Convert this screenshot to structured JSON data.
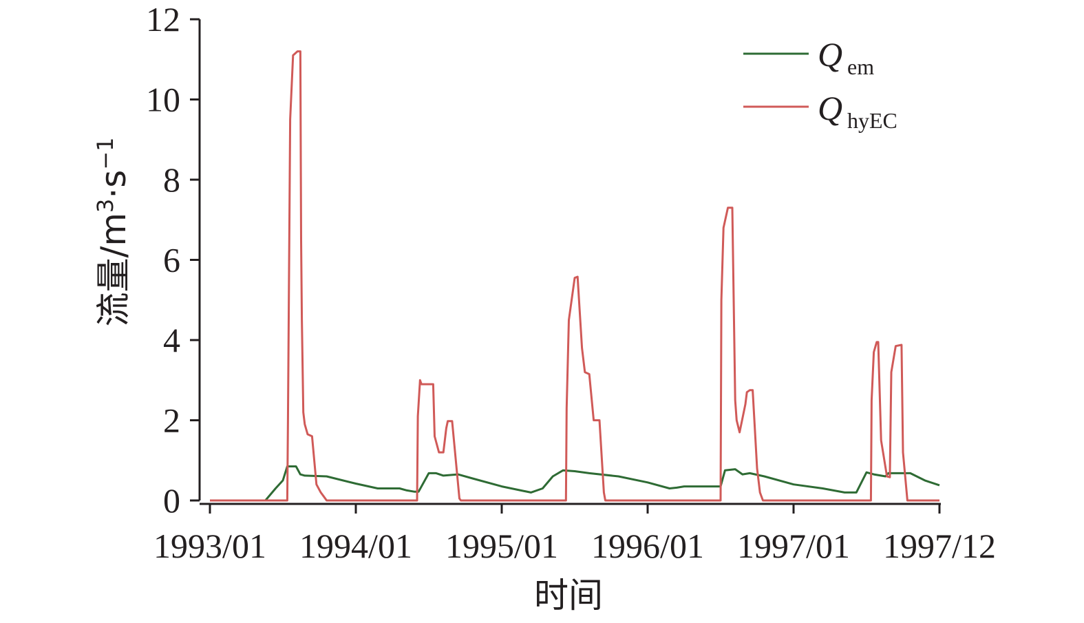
{
  "chart_data": {
    "type": "line",
    "xlabel": "时间",
    "ylabel_main": "流量/m",
    "ylabel_sup1": "3",
    "ylabel_mid": "·s",
    "ylabel_sup2": "−1",
    "ylim": [
      0,
      12
    ],
    "xlim": [
      1993.0,
      1998.0
    ],
    "grid": false,
    "legend_position": "top-right",
    "y_ticks": [
      {
        "value": 0,
        "label": "0"
      },
      {
        "value": 2,
        "label": "2"
      },
      {
        "value": 4,
        "label": "4"
      },
      {
        "value": 6,
        "label": "6"
      },
      {
        "value": 8,
        "label": "8"
      },
      {
        "value": 10,
        "label": "10"
      },
      {
        "value": 12,
        "label": "12"
      }
    ],
    "x_ticks": [
      {
        "value": 1993.0,
        "label": "1993/01"
      },
      {
        "value": 1994.0,
        "label": "1994/01"
      },
      {
        "value": 1995.0,
        "label": "1995/01"
      },
      {
        "value": 1996.0,
        "label": "1996/01"
      },
      {
        "value": 1997.0,
        "label": "1997/01"
      },
      {
        "value": 1998.0,
        "label": "1997/12"
      }
    ],
    "series": [
      {
        "name_main": "Q",
        "name_sub": "em",
        "color": "#2e6b34",
        "x": [
          1993.0,
          1993.38,
          1993.45,
          1993.5,
          1993.53,
          1993.59,
          1993.62,
          1993.65,
          1993.8,
          1994.0,
          1994.15,
          1994.3,
          1994.35,
          1994.4,
          1994.43,
          1994.5,
          1994.55,
          1994.6,
          1994.7,
          1994.8,
          1995.0,
          1995.2,
          1995.28,
          1995.35,
          1995.42,
          1995.5,
          1995.6,
          1995.8,
          1996.0,
          1996.15,
          1996.2,
          1996.25,
          1996.5,
          1996.53,
          1996.6,
          1996.65,
          1996.7,
          1996.8,
          1997.0,
          1997.2,
          1997.35,
          1997.43,
          1997.5,
          1997.55,
          1997.63,
          1997.65,
          1997.8,
          1997.9,
          1998.0
        ],
        "y": [
          0.0,
          0.0,
          0.3,
          0.5,
          0.85,
          0.85,
          0.65,
          0.62,
          0.6,
          0.42,
          0.3,
          0.3,
          0.25,
          0.22,
          0.22,
          0.68,
          0.68,
          0.62,
          0.65,
          0.55,
          0.35,
          0.2,
          0.3,
          0.6,
          0.75,
          0.73,
          0.68,
          0.6,
          0.45,
          0.3,
          0.32,
          0.35,
          0.35,
          0.75,
          0.78,
          0.65,
          0.68,
          0.6,
          0.4,
          0.3,
          0.2,
          0.2,
          0.7,
          0.65,
          0.6,
          0.68,
          0.68,
          0.5,
          0.38
        ]
      },
      {
        "name_main": "Q",
        "name_sub": "hyEC",
        "color": "#d05a58",
        "x": [
          1993.0,
          1993.53,
          1993.535,
          1993.55,
          1993.57,
          1993.6,
          1993.62,
          1993.625,
          1993.63,
          1993.64,
          1993.65,
          1993.67,
          1993.7,
          1993.73,
          1993.76,
          1993.78,
          1993.8,
          1993.83,
          1994.42,
          1994.425,
          1994.44,
          1994.45,
          1994.53,
          1994.54,
          1994.57,
          1994.6,
          1994.62,
          1994.63,
          1994.66,
          1994.71,
          1994.72,
          1994.75,
          1995.44,
          1995.445,
          1995.46,
          1995.5,
          1995.52,
          1995.55,
          1995.57,
          1995.6,
          1995.63,
          1995.67,
          1995.7,
          1995.71,
          1995.72,
          1995.74,
          1996.5,
          1996.505,
          1996.52,
          1996.55,
          1996.58,
          1996.6,
          1996.61,
          1996.63,
          1996.67,
          1996.68,
          1996.7,
          1996.72,
          1996.75,
          1996.77,
          1996.79,
          1996.8,
          1996.82,
          1997.53,
          1997.535,
          1997.55,
          1997.57,
          1997.58,
          1997.6,
          1997.64,
          1997.66,
          1997.67,
          1997.7,
          1997.74,
          1997.75,
          1997.78,
          1998.0
        ],
        "y": [
          0.0,
          0.0,
          2.0,
          9.5,
          11.1,
          11.2,
          11.2,
          6.5,
          4.5,
          2.2,
          1.9,
          1.65,
          1.6,
          0.4,
          0.2,
          0.1,
          0.0,
          0.0,
          0.0,
          2.1,
          3.0,
          2.9,
          2.9,
          1.6,
          1.2,
          1.2,
          1.8,
          1.98,
          1.98,
          0.05,
          0.0,
          0.0,
          0.0,
          2.3,
          4.5,
          5.55,
          5.58,
          3.8,
          3.2,
          3.15,
          2.0,
          2.0,
          0.2,
          0.0,
          0.0,
          0.0,
          0.0,
          5.0,
          6.8,
          7.3,
          7.3,
          2.5,
          2.0,
          1.7,
          2.4,
          2.7,
          2.75,
          2.75,
          0.8,
          0.2,
          0.0,
          0.0,
          0.0,
          0.0,
          2.5,
          3.7,
          3.95,
          3.95,
          1.5,
          0.6,
          0.58,
          3.2,
          3.85,
          3.88,
          1.2,
          0.0,
          0.0
        ]
      }
    ]
  }
}
